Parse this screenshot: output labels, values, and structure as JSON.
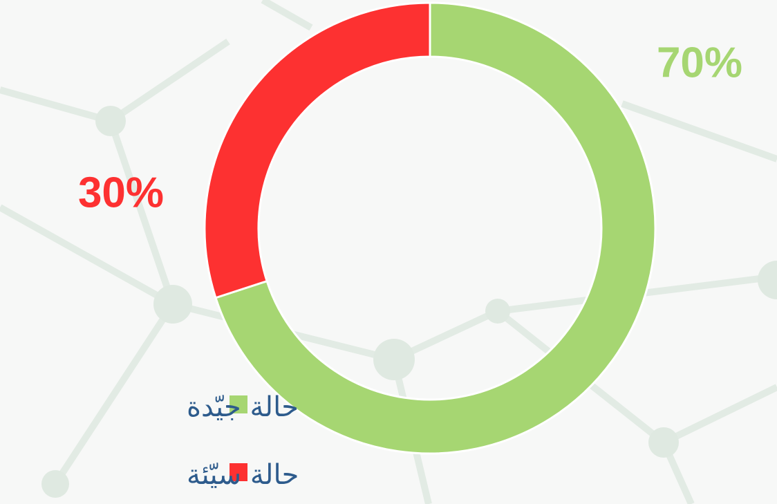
{
  "chart_data": {
    "type": "donut",
    "categories": [
      "حالة جيّدة",
      "حالة سيّئة"
    ],
    "values": [
      70,
      30
    ],
    "value_labels": [
      "70%",
      "30%"
    ],
    "colors": [
      "#a6d672",
      "#fd3131"
    ]
  }
}
